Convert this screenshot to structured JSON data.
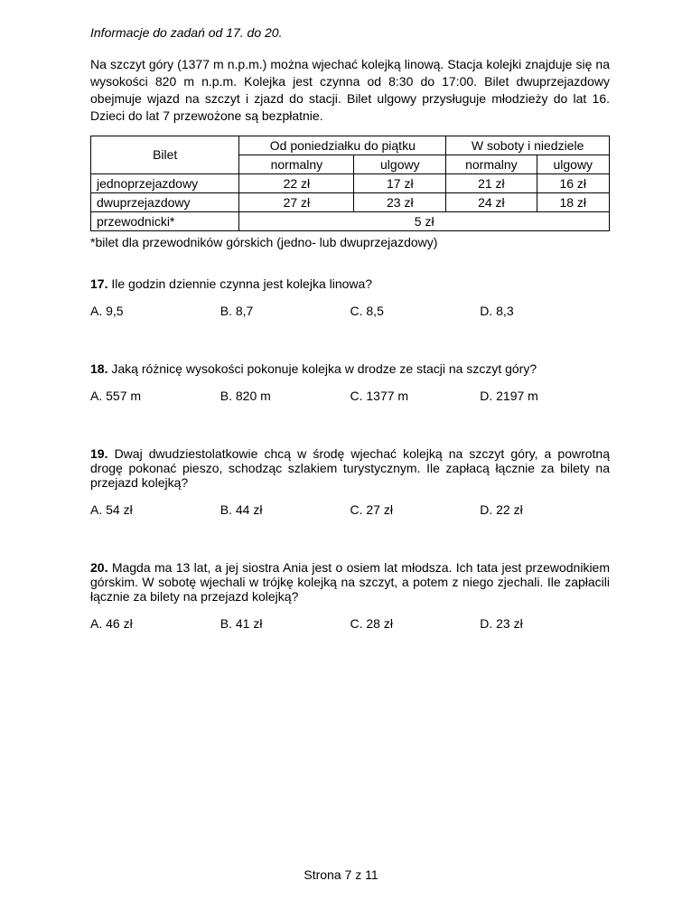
{
  "info_header": "Informacje do zadań od 17. do 20.",
  "intro": "Na szczyt góry (1377 m n.p.m.) można wjechać kolejką linową. Stacja kolejki znajduje się na wysokości 820 m n.p.m. Kolejka jest czynna od 8:30 do 17:00. Bilet dwuprzejazdowy obejmuje wjazd na szczyt i zjazd do stacji. Bilet ulgowy przysługuje młodzieży do lat 16. Dzieci do lat 7 przewożone są bezpłatnie.",
  "table": {
    "head_ticket": "Bilet",
    "head_week": "Od poniedziałku do piątku",
    "head_weekend": "W soboty i niedziele",
    "sub_normal": "normalny",
    "sub_reduced": "ulgowy",
    "rows": [
      {
        "label": "jednoprzejazdowy",
        "wn": "22 zł",
        "wu": "17 zł",
        "sn": "21 zł",
        "su": "16 zł"
      },
      {
        "label": "dwuprzejazdowy",
        "wn": "27 zł",
        "wu": "23 zł",
        "sn": "24 zł",
        "su": "18 zł"
      }
    ],
    "guide_label": "przewodnicki*",
    "guide_price": "5 zł"
  },
  "footnote": "*bilet dla przewodników górskich (jedno- lub dwuprzejazdowy)",
  "questions": [
    {
      "num": "17.",
      "text": "Ile godzin dziennie czynna jest kolejka linowa?",
      "answers": {
        "A": "A. 9,5",
        "B": "B. 8,7",
        "C": "C. 8,5",
        "D": "D. 8,3"
      }
    },
    {
      "num": "18.",
      "text": "Jaką różnicę wysokości pokonuje kolejka w drodze ze stacji na szczyt góry?",
      "answers": {
        "A": "A. 557 m",
        "B": "B. 820 m",
        "C": "C. 1377 m",
        "D": "D. 2197 m"
      }
    },
    {
      "num": "19.",
      "text": "Dwaj dwudziestolatkowie chcą w środę wjechać kolejką na szczyt góry, a powrotną drogę pokonać pieszo, schodząc szlakiem turystycznym. Ile zapłacą łącznie za bilety na przejazd kolejką?",
      "answers": {
        "A": "A. 54 zł",
        "B": "B. 44 zł",
        "C": "C. 27 zł",
        "D": "D. 22 zł"
      }
    },
    {
      "num": "20.",
      "text": "Magda ma 13 lat, a jej siostra Ania jest o osiem lat młodsza. Ich tata jest przewodnikiem górskim. W sobotę wjechali w trójkę kolejką na szczyt, a potem z niego zjechali. Ile zapłacili łącznie za bilety na przejazd kolejką?",
      "answers": {
        "A": "A. 46 zł",
        "B": "B. 41 zł",
        "C": "C. 28 zł",
        "D": "D. 23 zł"
      }
    }
  ],
  "page_number": "Strona 7 z 11"
}
